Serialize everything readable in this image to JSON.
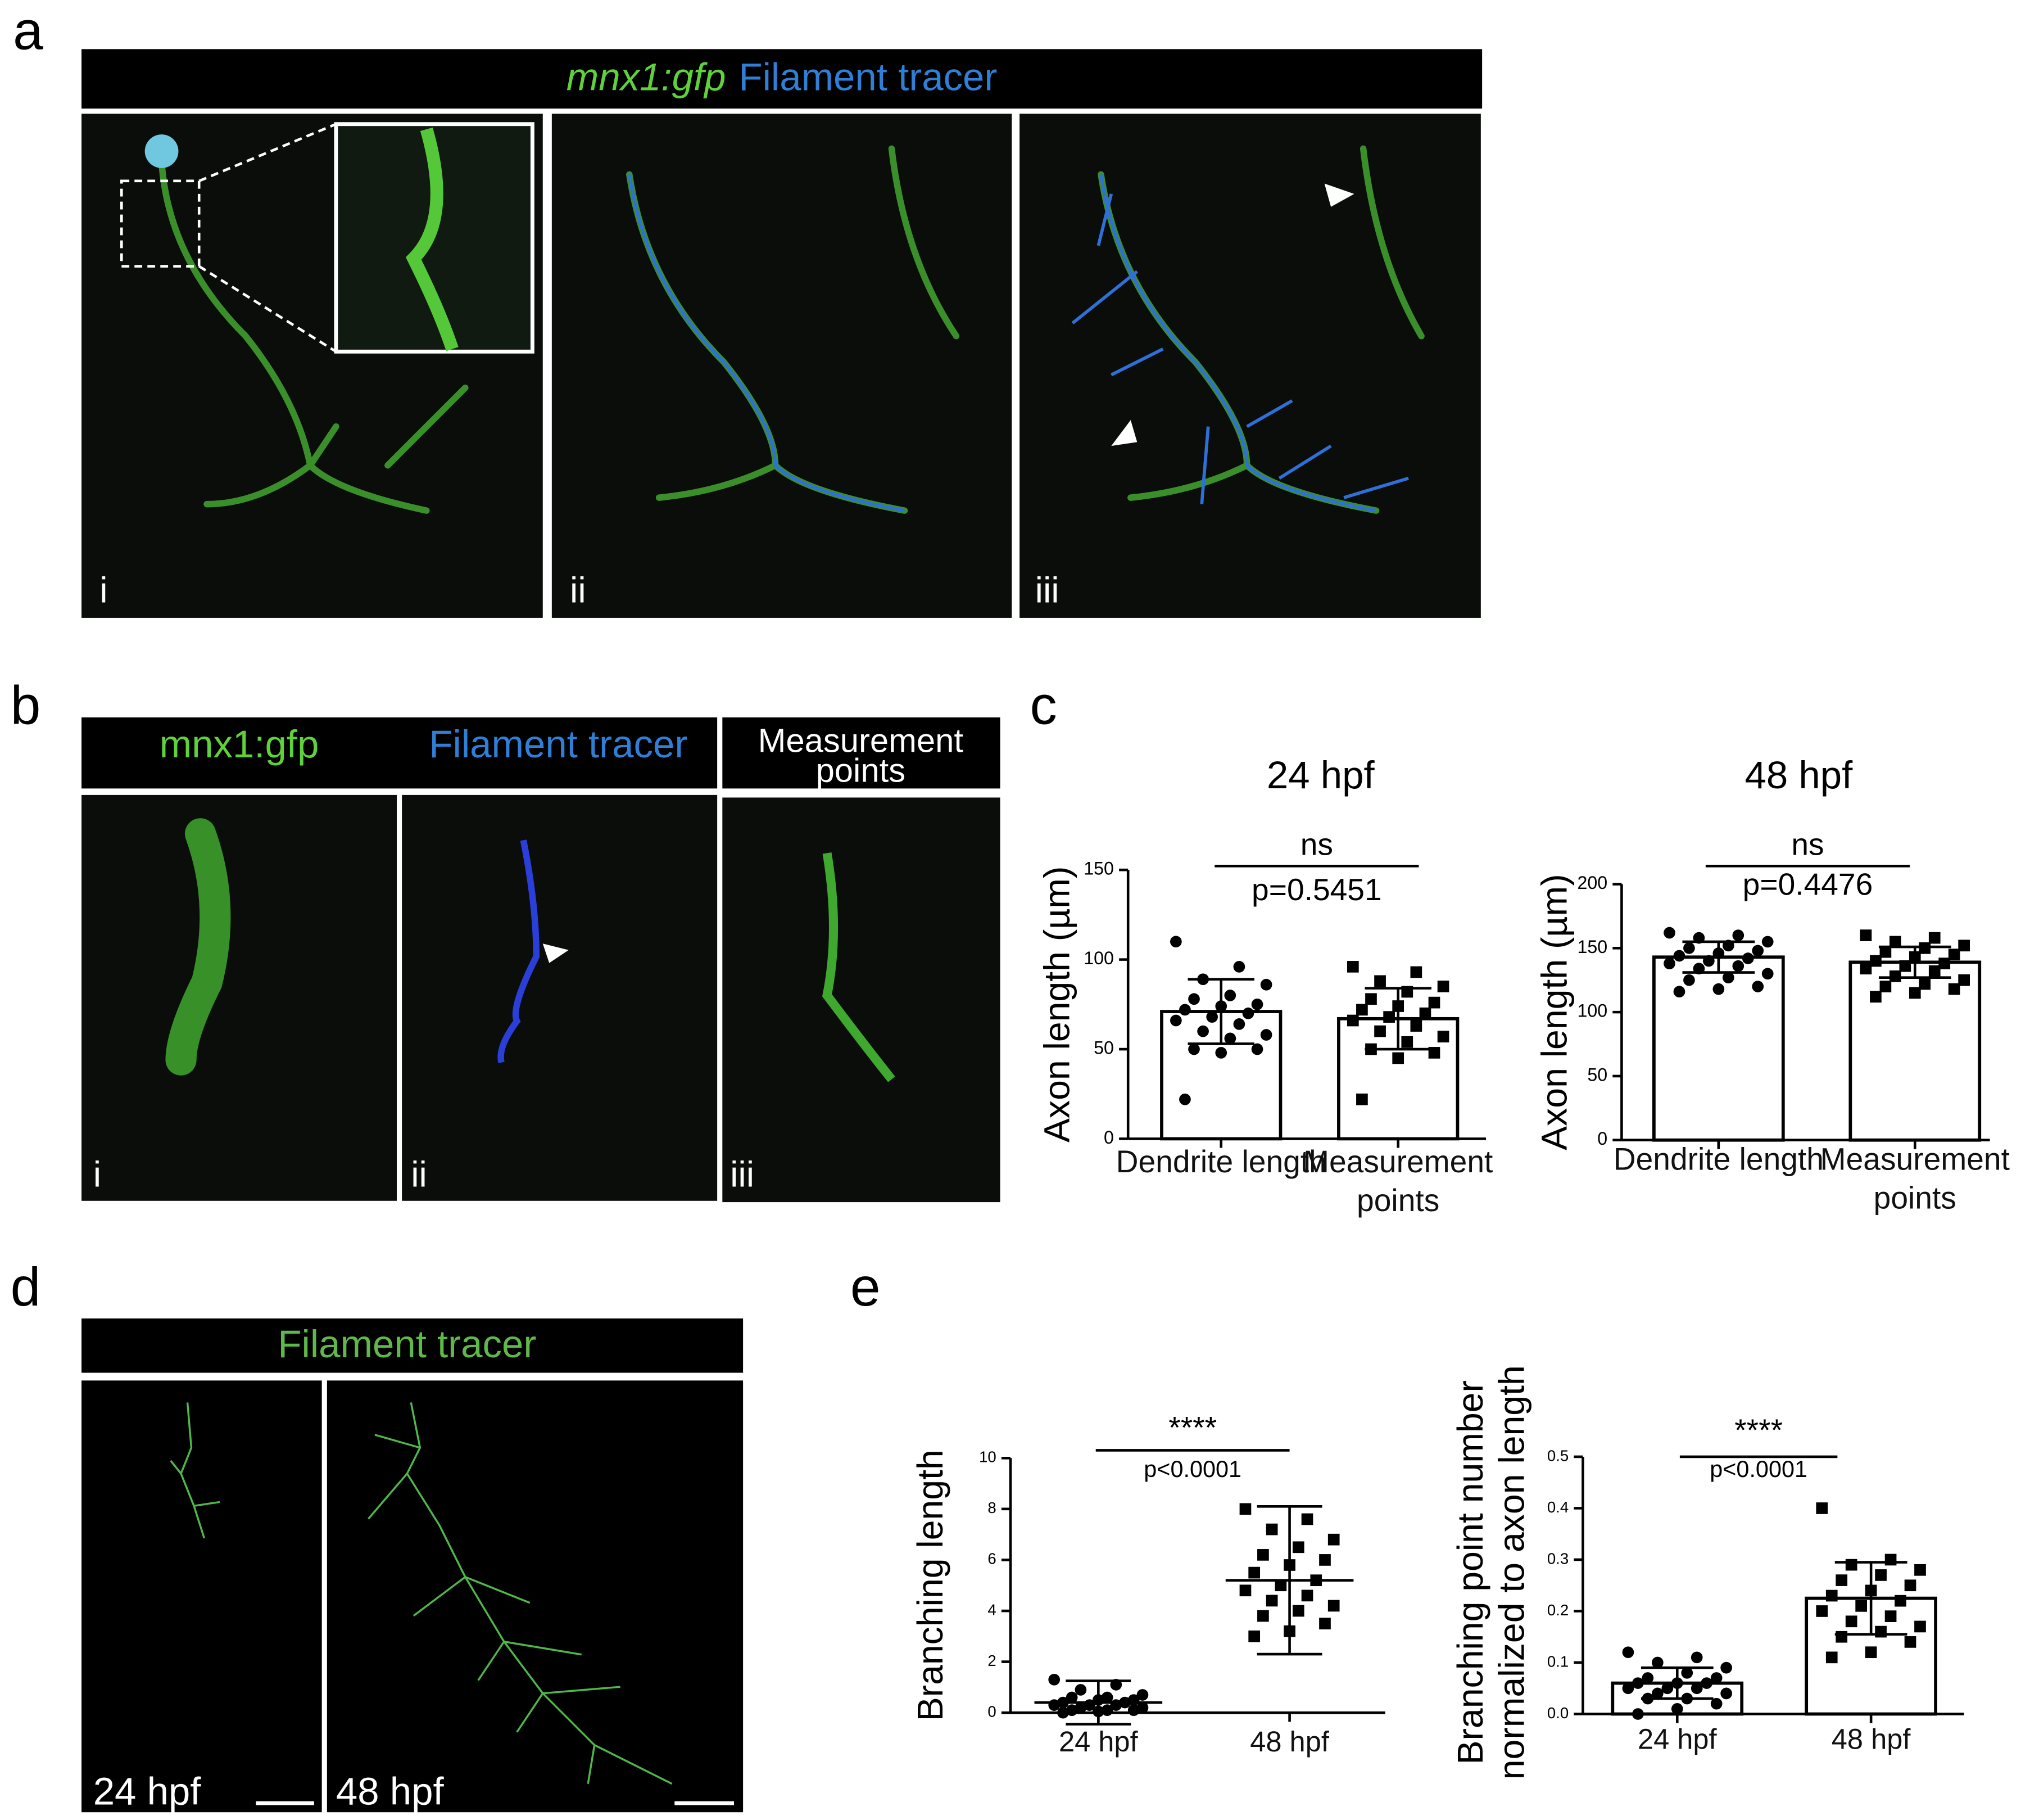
{
  "panel_labels": [
    "a",
    "b",
    "c",
    "d",
    "e"
  ],
  "panel_a": {
    "header_parts": [
      "mnx1:gfp",
      "Filament tracer"
    ],
    "image_labels": [
      "i",
      "ii",
      "iii"
    ]
  },
  "panel_b": {
    "headers": [
      "mnx1:gfp",
      "Filament tracer"
    ],
    "header_right": [
      "Measurement",
      "points"
    ],
    "image_labels": [
      "i",
      "ii",
      "iii"
    ]
  },
  "panel_d": {
    "header": "Filament tracer",
    "image_labels": [
      "24 hpf",
      "48 hpf"
    ]
  },
  "chart_data": [
    {
      "type": "bar",
      "title": "24 hpf",
      "y_label": "Axon length (µm)",
      "categories": [
        "Dendrite length",
        "Measurement points"
      ],
      "values": [
        71,
        67
      ],
      "errors": [
        18,
        17
      ],
      "bars": true,
      "markers": [
        "circle",
        "square"
      ],
      "color": "#000000",
      "points": [
        [
          110,
          96,
          89,
          86,
          80,
          78,
          75,
          74,
          72,
          70,
          68,
          66,
          64,
          60,
          58,
          56,
          50,
          50,
          48,
          22
        ],
        [
          96,
          93,
          88,
          85,
          82,
          78,
          76,
          74,
          72,
          70,
          68,
          66,
          63,
          60,
          57,
          54,
          50,
          48,
          45,
          22
        ]
      ],
      "significance": "ns",
      "p_label": "p=0.5451",
      "ylim": [
        0,
        150
      ],
      "yticks": [
        0,
        50,
        100,
        150
      ]
    },
    {
      "type": "bar",
      "title": "48 hpf",
      "y_label": "Axon length (µm)",
      "categories": [
        "Dendrite length",
        "Measurement points"
      ],
      "values": [
        143,
        139
      ],
      "errors": [
        12,
        12
      ],
      "bars": true,
      "markers": [
        "circle",
        "square"
      ],
      "color": "#000000",
      "points": [
        [
          162,
          160,
          158,
          155,
          152,
          150,
          148,
          146,
          144,
          142,
          140,
          138,
          136,
          134,
          130,
          127,
          125,
          120,
          118,
          116
        ],
        [
          160,
          158,
          155,
          152,
          150,
          147,
          145,
          143,
          140,
          138,
          136,
          134,
          132,
          128,
          125,
          122,
          120,
          118,
          115,
          112
        ]
      ],
      "significance": "ns",
      "p_label": "p=0.4476",
      "ylim": [
        0,
        200
      ],
      "yticks": [
        0,
        50,
        100,
        150,
        200
      ]
    },
    {
      "type": "bar",
      "y_label": "Branching length",
      "categories": [
        "24 hpf",
        "48 hpf"
      ],
      "values": [
        0.4,
        5.2
      ],
      "errors": [
        0.85,
        2.9
      ],
      "bars": false,
      "markers": [
        "circle",
        "square"
      ],
      "color": "#000000",
      "points": [
        [
          1.3,
          1.1,
          0.9,
          0.7,
          0.6,
          0.6,
          0.5,
          0.5,
          0.4,
          0.4,
          0.3,
          0.3,
          0.3,
          0.2,
          0.2,
          0.1,
          0.1,
          0.1,
          0.05,
          0
        ],
        [
          8,
          7.6,
          7.2,
          6.8,
          6.5,
          6.2,
          6,
          5.8,
          5.5,
          5.2,
          5,
          4.8,
          4.6,
          4.4,
          4.2,
          4,
          3.8,
          3.5,
          3.2,
          3
        ]
      ],
      "significance": "****",
      "p_label": "p<0.0001",
      "ylim": [
        0,
        10
      ],
      "yticks": [
        0,
        2,
        4,
        6,
        8,
        10
      ]
    },
    {
      "type": "bar",
      "y_label": [
        "Branching point number",
        "normalized to axon length"
      ],
      "categories": [
        "24 hpf",
        "48 hpf"
      ],
      "values": [
        0.06,
        0.225
      ],
      "errors": [
        0.03,
        0.07
      ],
      "bars": true,
      "markers": [
        "circle",
        "square"
      ],
      "color": "#000000",
      "points": [
        [
          0.12,
          0.11,
          0.1,
          0.09,
          0.08,
          0.07,
          0.07,
          0.06,
          0.06,
          0.06,
          0.05,
          0.05,
          0.05,
          0.04,
          0.04,
          0.03,
          0.03,
          0.02,
          0.01,
          0
        ],
        [
          0.4,
          0.3,
          0.29,
          0.28,
          0.27,
          0.26,
          0.25,
          0.24,
          0.23,
          0.22,
          0.21,
          0.2,
          0.19,
          0.18,
          0.17,
          0.16,
          0.15,
          0.14,
          0.12,
          0.11
        ]
      ],
      "significance": "****",
      "p_label": "p<0.0001",
      "ylim": [
        0,
        0.5
      ],
      "yticks": [
        {
          "value": 0,
          "label": "0.0"
        },
        0.1,
        0.2,
        0.3,
        0.4,
        0.5
      ]
    }
  ]
}
